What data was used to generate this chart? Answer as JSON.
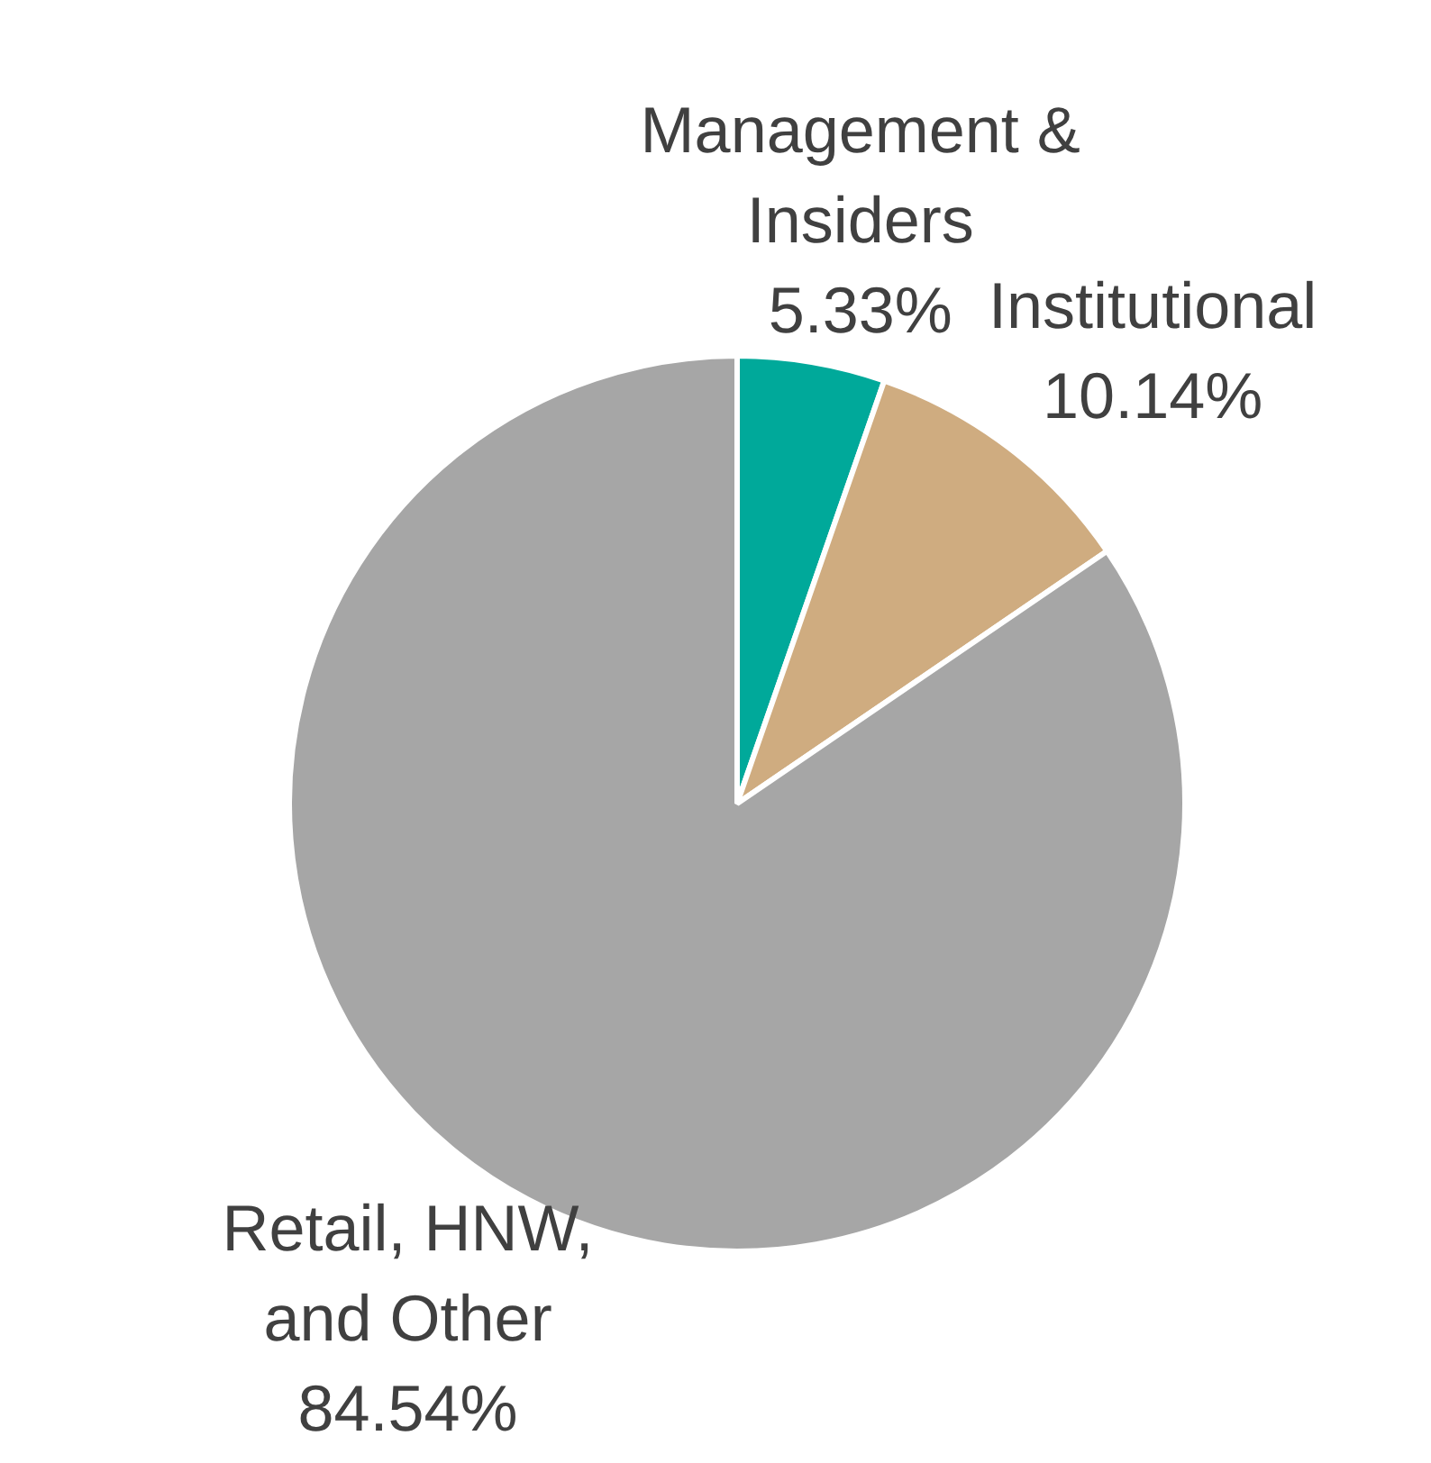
{
  "chart_data": {
    "type": "pie",
    "categories": [
      "Management & Insiders",
      "Institutional",
      "Retail, HNW, and Other"
    ],
    "values": [
      5.33,
      10.14,
      84.54
    ],
    "value_labels": [
      "5.33%",
      "10.14%",
      "84.54%"
    ],
    "colors": [
      "#00a99a",
      "#cfac80",
      "#a6a6a6"
    ],
    "legend": false
  }
}
